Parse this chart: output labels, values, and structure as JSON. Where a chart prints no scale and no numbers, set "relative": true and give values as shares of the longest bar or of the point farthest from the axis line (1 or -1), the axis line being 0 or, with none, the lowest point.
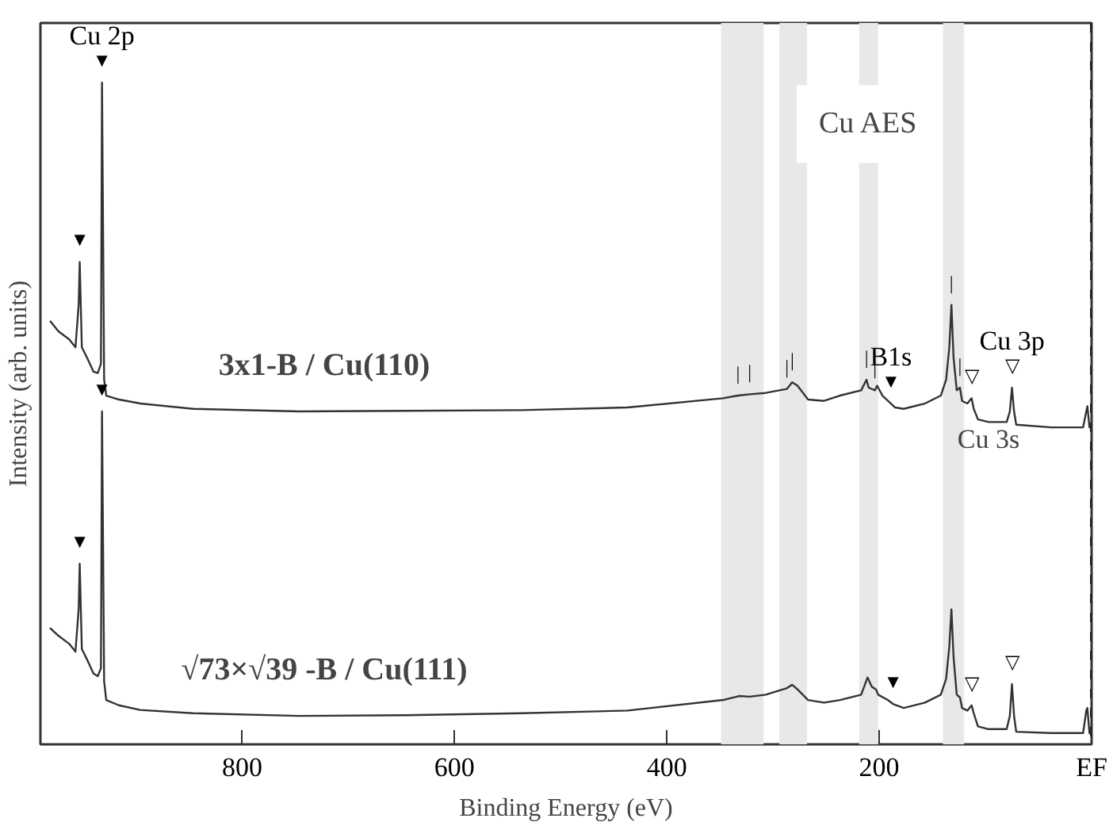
{
  "chart_data": {
    "type": "line",
    "relative": true,
    "xlabel": "Binding Energy (eV)",
    "ylabel": "Intensity (arb. units)",
    "xlim": [
      990,
      0
    ],
    "xticks": [
      800,
      600,
      400,
      200,
      {
        "value": 0,
        "label": "EF"
      }
    ],
    "grid": false,
    "legend": false,
    "tick_labels": "x",
    "series": [
      {
        "name": "3x1-B / Cu(110)",
        "color": "#333333",
        "x": [
          981,
          973,
          963,
          957,
          954,
          953,
          951,
          946,
          940,
          936,
          933,
          932,
          930,
          928,
          916,
          896,
          846,
          746,
          646,
          537,
          437,
          347,
          333,
          322,
          307,
          287,
          282,
          277,
          267,
          252,
          237,
          217,
          212,
          210,
          204,
          202,
          197,
          189,
          185,
          177,
          157,
          142,
          137,
          134,
          132,
          130,
          127,
          124,
          122,
          117,
          113,
          111,
          107,
          97,
          80,
          77,
          75,
          73,
          71,
          38,
          8,
          5,
          4,
          2,
          0
        ],
        "values": [
          0.64,
          0.624,
          0.612,
          0.6,
          0.664,
          0.729,
          0.6,
          0.584,
          0.563,
          0.561,
          0.575,
          1.0,
          0.551,
          0.527,
          0.521,
          0.515,
          0.507,
          0.503,
          0.504,
          0.505,
          0.509,
          0.523,
          0.527,
          0.529,
          0.531,
          0.537,
          0.547,
          0.542,
          0.521,
          0.519,
          0.527,
          0.535,
          0.551,
          0.539,
          0.535,
          0.542,
          0.527,
          0.515,
          0.509,
          0.507,
          0.515,
          0.527,
          0.551,
          0.6,
          0.664,
          0.584,
          0.535,
          0.539,
          0.519,
          0.515,
          0.523,
          0.507,
          0.491,
          0.487,
          0.487,
          0.503,
          0.539,
          0.503,
          0.483,
          0.479,
          0.479,
          0.503,
          0.511,
          0.479,
          0.477
        ]
      },
      {
        "name": "√73×√39 -B / Cu(111)",
        "color": "#333333",
        "x": [
          981,
          973,
          963,
          957,
          954,
          953,
          951,
          946,
          940,
          936,
          933,
          932,
          930,
          928,
          916,
          896,
          846,
          746,
          646,
          537,
          437,
          347,
          332,
          322,
          307,
          287,
          282,
          277,
          267,
          252,
          237,
          217,
          211,
          207,
          203,
          201,
          192,
          187,
          177,
          157,
          142,
          137,
          134,
          132,
          130,
          127,
          124,
          122,
          117,
          113,
          111,
          107,
          97,
          80,
          77,
          75,
          73,
          71,
          38,
          8,
          5,
          4,
          2,
          0
        ],
        "values": [
          0.176,
          0.164,
          0.152,
          0.14,
          0.204,
          0.273,
          0.144,
          0.128,
          0.107,
          0.103,
          0.115,
          0.503,
          0.095,
          0.067,
          0.059,
          0.052,
          0.047,
          0.043,
          0.044,
          0.047,
          0.051,
          0.067,
          0.073,
          0.072,
          0.075,
          0.085,
          0.09,
          0.083,
          0.067,
          0.063,
          0.067,
          0.075,
          0.101,
          0.087,
          0.083,
          0.075,
          0.067,
          0.061,
          0.055,
          0.063,
          0.075,
          0.099,
          0.148,
          0.204,
          0.132,
          0.075,
          0.071,
          0.055,
          0.051,
          0.059,
          0.047,
          0.027,
          0.023,
          0.023,
          0.043,
          0.091,
          0.043,
          0.019,
          0.017,
          0.017,
          0.051,
          0.055,
          0.017,
          0.015
        ]
      }
    ],
    "bands": [
      {
        "axis": "x",
        "from": 349,
        "to": 309,
        "color": "#e8e8e8"
      },
      {
        "axis": "x",
        "from": 294,
        "to": 268,
        "color": "#e8e8e8"
      },
      {
        "axis": "x",
        "from": 219,
        "to": 201,
        "color": "#e8e8e8",
        "label": "Cu AES"
      },
      {
        "axis": "x",
        "from": 140,
        "to": 120,
        "color": "#e8e8e8"
      }
    ],
    "ref_lines": [
      {
        "axis": "x",
        "value": 0,
        "color": "#222222",
        "line_style": "dashed"
      }
    ],
    "annotations": [
      "Cu 3s",
      {
        "text": "Cu 2p",
        "x": 932,
        "y": 1.0
      },
      {
        "text": "B1s",
        "x": 189,
        "y": 0.515
      },
      {
        "text": "Cu 3p",
        "x": 75,
        "y": 0.539
      },
      {
        "text": "▼",
        "x": 953,
        "y": 0.729
      },
      {
        "text": "▼",
        "x": 932,
        "y": 1.0
      },
      {
        "text": "▼",
        "x": 953,
        "y": 0.273
      },
      {
        "text": "▼",
        "x": 932,
        "y": 0.503
      },
      {
        "text": "▼",
        "x": 189,
        "y": 0.515
      },
      {
        "text": "▼",
        "x": 187,
        "y": 0.061
      },
      {
        "text": "▽",
        "x": 113,
        "y": 0.523
      },
      {
        "text": "▽",
        "x": 75,
        "y": 0.539
      },
      {
        "text": "▽",
        "x": 113,
        "y": 0.059
      },
      {
        "text": "▽",
        "x": 75,
        "y": 0.091
      },
      {
        "text": "|",
        "x": 333,
        "y": 0.527
      },
      {
        "text": "|",
        "x": 322,
        "y": 0.529
      },
      {
        "text": "|",
        "x": 287,
        "y": 0.537
      },
      {
        "text": "|",
        "x": 282,
        "y": 0.547
      },
      {
        "text": "|",
        "x": 212,
        "y": 0.551
      },
      {
        "text": "|",
        "x": 204,
        "y": 0.535
      },
      {
        "text": "|",
        "x": 132,
        "y": 0.664
      },
      {
        "text": "|",
        "x": 124,
        "y": 0.539
      }
    ]
  }
}
